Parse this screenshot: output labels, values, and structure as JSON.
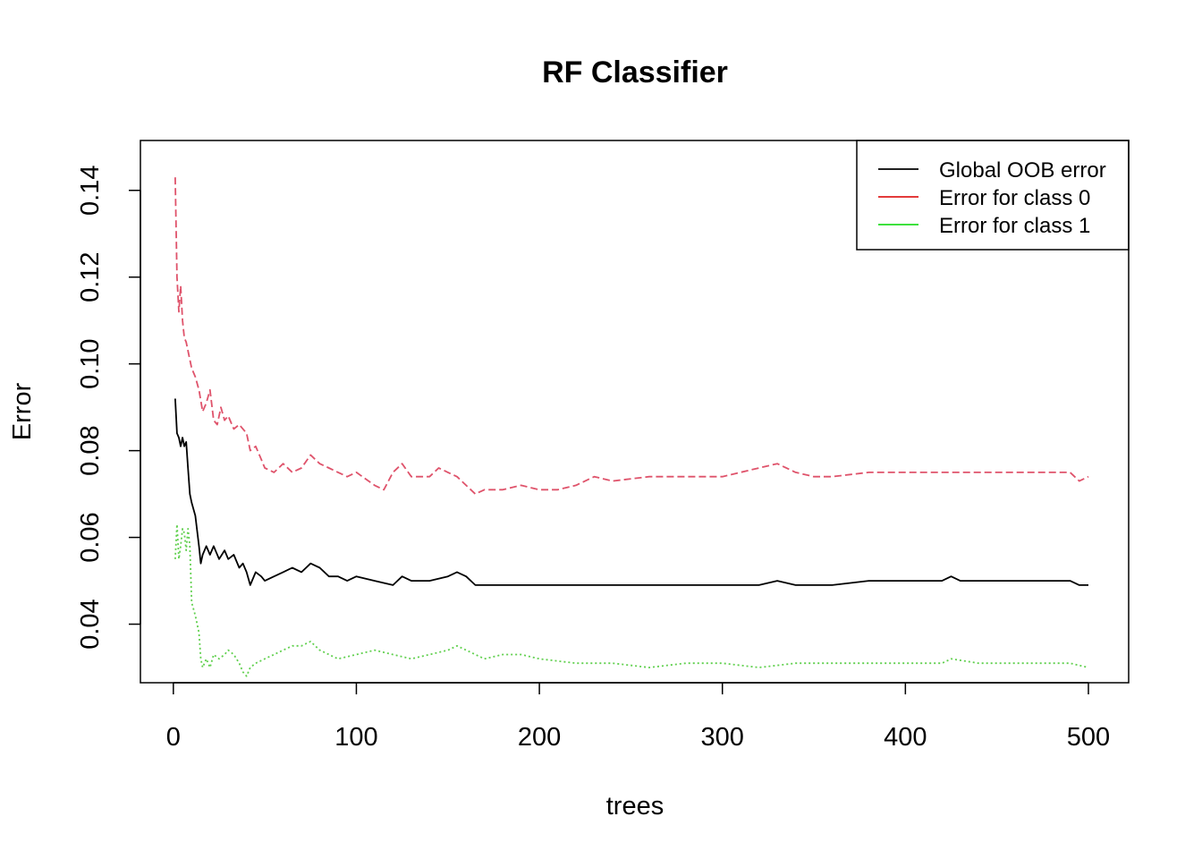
{
  "chart_data": {
    "type": "line",
    "title": "RF Classifier",
    "xlabel": "trees",
    "ylabel": "Error",
    "xlim": [
      -18,
      522
    ],
    "ylim": [
      0.0265,
      0.1515
    ],
    "xticks": [
      0,
      100,
      200,
      300,
      400,
      500
    ],
    "xtick_labels": [
      "0",
      "100",
      "200",
      "300",
      "400",
      "500"
    ],
    "yticks": [
      0.04,
      0.06,
      0.08,
      0.1,
      0.12,
      0.14
    ],
    "ytick_labels": [
      "0.04",
      "0.06",
      "0.08",
      "0.10",
      "0.12",
      "0.14"
    ],
    "grid": false,
    "legend": {
      "placement": "top-right",
      "entries": [
        "Global OOB error",
        "Error for class 0",
        "Error for class 1"
      ],
      "colors": [
        "#000000",
        "#DF1F1F",
        "#22DD22"
      ]
    },
    "series": [
      {
        "name": "Global OOB error",
        "color": "#000000",
        "dash": "solid",
        "x": [
          1,
          2,
          3,
          4,
          5,
          6,
          7,
          8,
          9,
          10,
          12,
          14,
          15,
          16,
          18,
          20,
          22,
          25,
          28,
          30,
          33,
          36,
          38,
          40,
          42,
          45,
          48,
          50,
          55,
          60,
          65,
          70,
          75,
          80,
          85,
          90,
          95,
          100,
          110,
          120,
          125,
          130,
          140,
          150,
          155,
          160,
          165,
          170,
          180,
          190,
          200,
          220,
          240,
          260,
          280,
          300,
          320,
          330,
          340,
          360,
          380,
          400,
          420,
          425,
          430,
          440,
          460,
          480,
          490,
          495,
          500
        ],
        "values": [
          0.092,
          0.084,
          0.083,
          0.081,
          0.083,
          0.081,
          0.082,
          0.076,
          0.07,
          0.068,
          0.065,
          0.058,
          0.054,
          0.056,
          0.058,
          0.056,
          0.058,
          0.055,
          0.057,
          0.055,
          0.056,
          0.053,
          0.054,
          0.052,
          0.049,
          0.052,
          0.051,
          0.05,
          0.051,
          0.052,
          0.053,
          0.052,
          0.054,
          0.053,
          0.051,
          0.051,
          0.05,
          0.051,
          0.05,
          0.049,
          0.051,
          0.05,
          0.05,
          0.051,
          0.052,
          0.051,
          0.049,
          0.049,
          0.049,
          0.049,
          0.049,
          0.049,
          0.049,
          0.049,
          0.049,
          0.049,
          0.049,
          0.05,
          0.049,
          0.049,
          0.05,
          0.05,
          0.05,
          0.051,
          0.05,
          0.05,
          0.05,
          0.05,
          0.05,
          0.049,
          0.049
        ]
      },
      {
        "name": "Error for class 0",
        "color": "#DF536B",
        "dash": "dashed",
        "x": [
          1,
          2,
          3,
          4,
          5,
          6,
          7,
          8,
          10,
          12,
          14,
          16,
          18,
          20,
          22,
          24,
          26,
          28,
          30,
          33,
          36,
          40,
          42,
          45,
          48,
          50,
          55,
          60,
          65,
          70,
          75,
          80,
          85,
          90,
          95,
          100,
          110,
          115,
          120,
          125,
          130,
          140,
          145,
          150,
          155,
          160,
          165,
          170,
          180,
          190,
          200,
          210,
          220,
          230,
          240,
          260,
          280,
          300,
          320,
          330,
          340,
          350,
          360,
          380,
          400,
          420,
          440,
          460,
          480,
          490,
          495,
          500
        ],
        "values": [
          0.143,
          0.12,
          0.112,
          0.118,
          0.11,
          0.106,
          0.105,
          0.103,
          0.099,
          0.097,
          0.094,
          0.089,
          0.091,
          0.094,
          0.087,
          0.086,
          0.09,
          0.087,
          0.088,
          0.085,
          0.086,
          0.084,
          0.08,
          0.081,
          0.078,
          0.076,
          0.075,
          0.077,
          0.075,
          0.076,
          0.079,
          0.077,
          0.076,
          0.075,
          0.074,
          0.075,
          0.072,
          0.071,
          0.075,
          0.077,
          0.074,
          0.074,
          0.076,
          0.075,
          0.074,
          0.072,
          0.07,
          0.071,
          0.071,
          0.072,
          0.071,
          0.071,
          0.072,
          0.074,
          0.073,
          0.074,
          0.074,
          0.074,
          0.076,
          0.077,
          0.075,
          0.074,
          0.074,
          0.075,
          0.075,
          0.075,
          0.075,
          0.075,
          0.075,
          0.075,
          0.073,
          0.074
        ]
      },
      {
        "name": "Error for class 1",
        "color": "#61D04F",
        "dash": "dotted",
        "x": [
          1,
          2,
          3,
          4,
          5,
          6,
          7,
          8,
          9,
          10,
          12,
          14,
          15,
          16,
          18,
          20,
          22,
          25,
          28,
          30,
          33,
          36,
          38,
          40,
          42,
          45,
          50,
          55,
          60,
          65,
          70,
          75,
          80,
          85,
          90,
          100,
          110,
          120,
          130,
          140,
          150,
          155,
          160,
          170,
          180,
          190,
          200,
          220,
          240,
          260,
          280,
          300,
          320,
          340,
          360,
          380,
          400,
          420,
          425,
          440,
          460,
          480,
          490,
          500
        ],
        "values": [
          0.055,
          0.063,
          0.055,
          0.058,
          0.062,
          0.061,
          0.057,
          0.062,
          0.058,
          0.045,
          0.042,
          0.038,
          0.032,
          0.03,
          0.032,
          0.03,
          0.033,
          0.032,
          0.033,
          0.034,
          0.033,
          0.031,
          0.029,
          0.028,
          0.03,
          0.031,
          0.032,
          0.033,
          0.034,
          0.035,
          0.035,
          0.036,
          0.034,
          0.033,
          0.032,
          0.033,
          0.034,
          0.033,
          0.032,
          0.033,
          0.034,
          0.035,
          0.034,
          0.032,
          0.033,
          0.033,
          0.032,
          0.031,
          0.031,
          0.03,
          0.031,
          0.031,
          0.03,
          0.031,
          0.031,
          0.031,
          0.031,
          0.031,
          0.032,
          0.031,
          0.031,
          0.031,
          0.031,
          0.03
        ]
      }
    ]
  }
}
